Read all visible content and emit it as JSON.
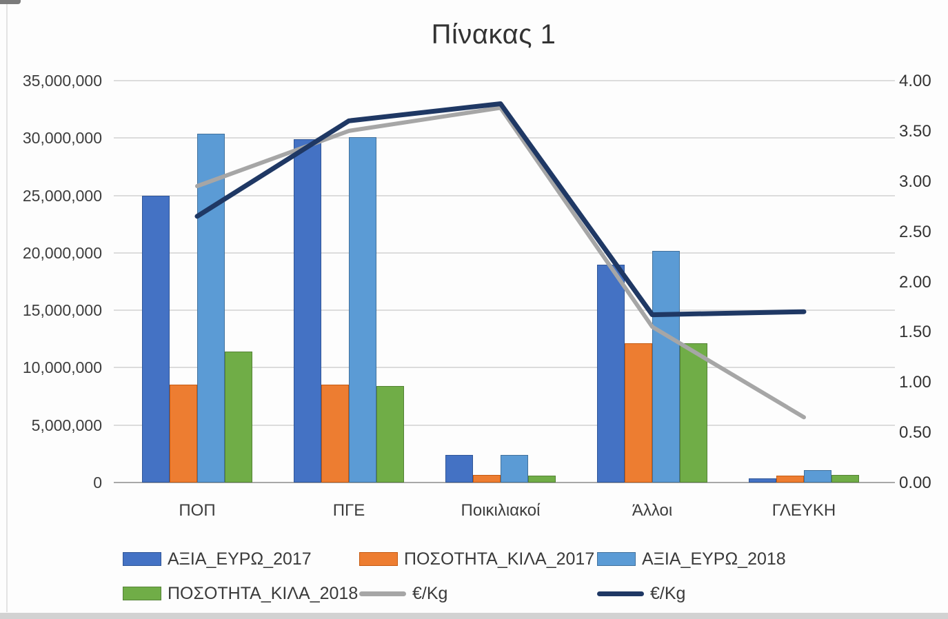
{
  "chart_data": {
    "type": "combo-bar-line",
    "title": "Πίνακας 1",
    "categories": [
      "ΠΟΠ",
      "ΠΓΕ",
      "Ποικιλιακοί",
      "Άλλοι",
      "ΓΛΕΥΚΗ"
    ],
    "bar_series": [
      {
        "name": "ΑΞΙΑ_ΕΥΡΩ_2017",
        "color": "#4472C4",
        "border": "#2f5597",
        "axis": "primary",
        "values": [
          25000000,
          29900000,
          2400000,
          19000000,
          350000
        ]
      },
      {
        "name": "ΠΟΣΟΤΗΤΑ_ΚΙΛΑ_2017",
        "color": "#ED7D31",
        "border": "#c55a11",
        "axis": "primary",
        "values": [
          8500000,
          8500000,
          650000,
          12100000,
          600000
        ]
      },
      {
        "name": "ΑΞΙΑ_ΕΥΡΩ_2018",
        "color": "#5B9BD5",
        "border": "#41719c",
        "axis": "primary",
        "values": [
          30400000,
          30100000,
          2400000,
          20200000,
          1100000
        ]
      },
      {
        "name": "ΠΟΣΟΤΗΤΑ_ΚΙΛΑ_2018",
        "color": "#70AD47",
        "border": "#548235",
        "axis": "primary",
        "values": [
          11400000,
          8400000,
          600000,
          12100000,
          650000
        ]
      }
    ],
    "line_series": [
      {
        "name": "€/Kg",
        "color": "#A6A6A6",
        "axis": "secondary",
        "width": 6,
        "values": [
          2.95,
          3.5,
          3.73,
          1.55,
          0.65
        ]
      },
      {
        "name": "€/Kg",
        "color": "#1F3864",
        "axis": "secondary",
        "width": 7,
        "values": [
          2.65,
          3.6,
          3.77,
          1.67,
          1.7
        ]
      }
    ],
    "left_axis": {
      "min": 0,
      "max": 35000000,
      "step": 5000000,
      "ticks": [
        "35,000,000",
        "30,000,000",
        "25,000,000",
        "20,000,000",
        "15,000,000",
        "10,000,000",
        "5,000,000",
        "0"
      ]
    },
    "right_axis": {
      "min": 0,
      "max": 4,
      "step": 0.5,
      "ticks": [
        "4.00",
        "3.50",
        "3.00",
        "2.50",
        "2.00",
        "1.50",
        "1.00",
        "0.50",
        "0.00"
      ]
    },
    "grid": "horizontal",
    "legend": {
      "position": "bottom",
      "rows": [
        {
          "items": [
            {
              "marker": "swatch",
              "color": "#4472C4",
              "border": "#2f5597",
              "label": "ΑΞΙΑ_ΕΥΡΩ_2017"
            },
            {
              "marker": "swatch",
              "color": "#ED7D31",
              "border": "#c55a11",
              "label": "ΠΟΣΟΤΗΤΑ_ΚΙΛΑ_2017"
            },
            {
              "marker": "swatch",
              "color": "#5B9BD5",
              "border": "#41719c",
              "label": "ΑΞΙΑ_ΕΥΡΩ_2018"
            }
          ]
        },
        {
          "items": [
            {
              "marker": "swatch",
              "color": "#70AD47",
              "border": "#548235",
              "label": "ΠΟΣΟΤΗΤΑ_ΚΙΛΑ_2018"
            },
            {
              "marker": "line",
              "color": "#A6A6A6",
              "border": "#8c8c8c",
              "label": "€/Kg"
            },
            {
              "marker": "line",
              "color": "#1F3864",
              "border": "#1F3864",
              "label": "€/Kg"
            }
          ]
        }
      ]
    }
  }
}
